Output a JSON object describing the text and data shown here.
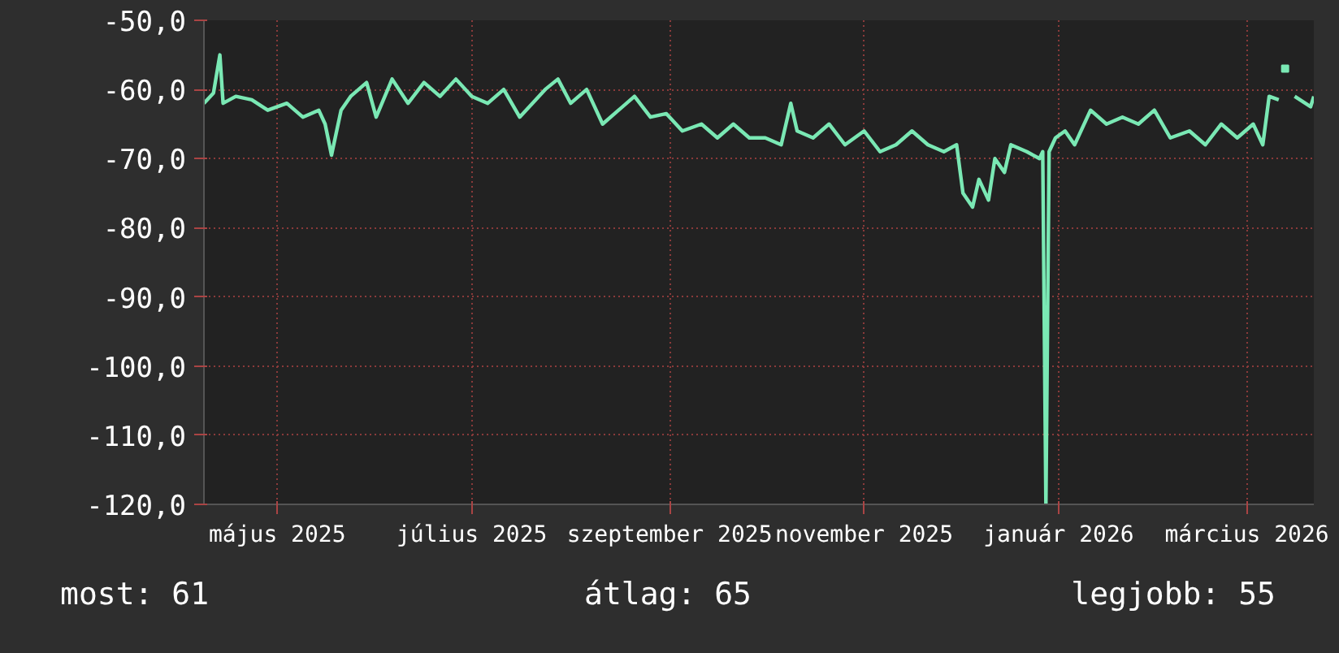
{
  "chart_data": {
    "type": "line",
    "x": [
      "2025-04-08",
      "2025-04-11",
      "2025-04-13",
      "2025-04-14",
      "2025-04-18",
      "2025-04-23",
      "2025-04-28",
      "2025-05-04",
      "2025-05-09",
      "2025-05-14",
      "2025-05-16",
      "2025-05-18",
      "2025-05-21",
      "2025-05-24",
      "2025-05-29",
      "2025-06-01",
      "2025-06-06",
      "2025-06-11",
      "2025-06-16",
      "2025-06-21",
      "2025-06-26",
      "2025-07-01",
      "2025-07-06",
      "2025-07-11",
      "2025-07-16",
      "2025-07-24",
      "2025-07-28",
      "2025-08-01",
      "2025-08-06",
      "2025-08-11",
      "2025-08-16",
      "2025-08-21",
      "2025-08-26",
      "2025-08-31",
      "2025-09-05",
      "2025-09-11",
      "2025-09-16",
      "2025-09-21",
      "2025-09-26",
      "2025-10-01",
      "2025-10-06",
      "2025-10-09",
      "2025-10-11",
      "2025-10-16",
      "2025-10-21",
      "2025-10-26",
      "2025-11-01",
      "2025-11-06",
      "2025-11-11",
      "2025-11-16",
      "2025-11-21",
      "2025-11-26",
      "2025-11-30",
      "2025-12-02",
      "2025-12-05",
      "2025-12-07",
      "2025-12-10",
      "2025-12-12",
      "2025-12-15",
      "2025-12-17",
      "2025-12-22",
      "2025-12-26",
      "2025-12-27",
      "2025-12-28",
      "2025-12-29",
      "2025-12-31",
      "2026-01-03",
      "2026-01-06",
      "2026-01-11",
      "2026-01-16",
      "2026-01-21",
      "2026-01-26",
      "2026-01-31",
      "2026-02-05",
      "2026-02-11",
      "2026-02-16",
      "2026-02-21",
      "2026-02-26",
      "2026-03-03",
      "2026-03-06",
      "2026-03-08",
      "2026-03-11",
      "2026-03-13",
      "2026-03-16",
      "2026-03-21",
      "2026-03-22"
    ],
    "series": [
      {
        "color": "#7ae8b4",
        "values": [
          -62,
          -60.5,
          -55,
          -62,
          -61,
          -61.5,
          -63,
          -62,
          -64,
          -63,
          -65,
          -69.5,
          -63,
          -61,
          -59,
          -64,
          -58.5,
          -62,
          -59,
          -61,
          -58.5,
          -61,
          -62,
          -60,
          -64,
          -60,
          -58.5,
          -62,
          -60,
          -65,
          -63,
          -61,
          -64,
          -63.5,
          -66,
          -65,
          -67,
          -65,
          -67,
          -67,
          -68,
          -62,
          -66,
          -67,
          -65,
          -68,
          -66,
          -69,
          -68,
          -66,
          -68,
          -69,
          -68,
          -75,
          -77,
          -73,
          -76,
          -70,
          -72,
          -68,
          -69,
          -70,
          -69,
          -120,
          -69,
          -67,
          -66,
          -68,
          -63,
          -65,
          -64,
          -65,
          -63,
          -67,
          -66,
          -68,
          -65,
          -67,
          -65,
          -68,
          -61,
          -61.5,
          null,
          -61,
          -62.5,
          -61
        ]
      },
      {
        "type": "scatter",
        "marker": "square",
        "color": "#7ae8b4",
        "x": [
          "2026-03-13"
        ],
        "values": [
          -57
        ]
      }
    ],
    "xlim": [
      "2025-04-08",
      "2026-03-22"
    ],
    "xticks": [
      {
        "value": "2025-05-01",
        "label": "május 2025"
      },
      {
        "value": "2025-07-01",
        "label": "július 2025"
      },
      {
        "value": "2025-09-01",
        "label": "szeptember 2025"
      },
      {
        "value": "2025-11-01",
        "label": "november 2025"
      },
      {
        "value": "2026-01-01",
        "label": "január 2026"
      },
      {
        "value": "2026-03-01",
        "label": "március 2026"
      }
    ],
    "ylim": [
      -120,
      -50
    ],
    "yticks": [
      {
        "value": -120,
        "label": "-120,0"
      },
      {
        "value": -110,
        "label": "-110,0"
      },
      {
        "value": -100,
        "label": "-100,0"
      },
      {
        "value": -90,
        "label": "-90,0"
      },
      {
        "value": -80,
        "label": "-80,0"
      },
      {
        "value": -70,
        "label": "-70,0"
      },
      {
        "value": -60,
        "label": "-60,0"
      },
      {
        "value": -50,
        "label": "-50,0"
      }
    ],
    "grid": true,
    "line_style": "solid",
    "annotations": [
      "most: 61",
      "átlag: 65",
      "legjobb: 55"
    ]
  }
}
